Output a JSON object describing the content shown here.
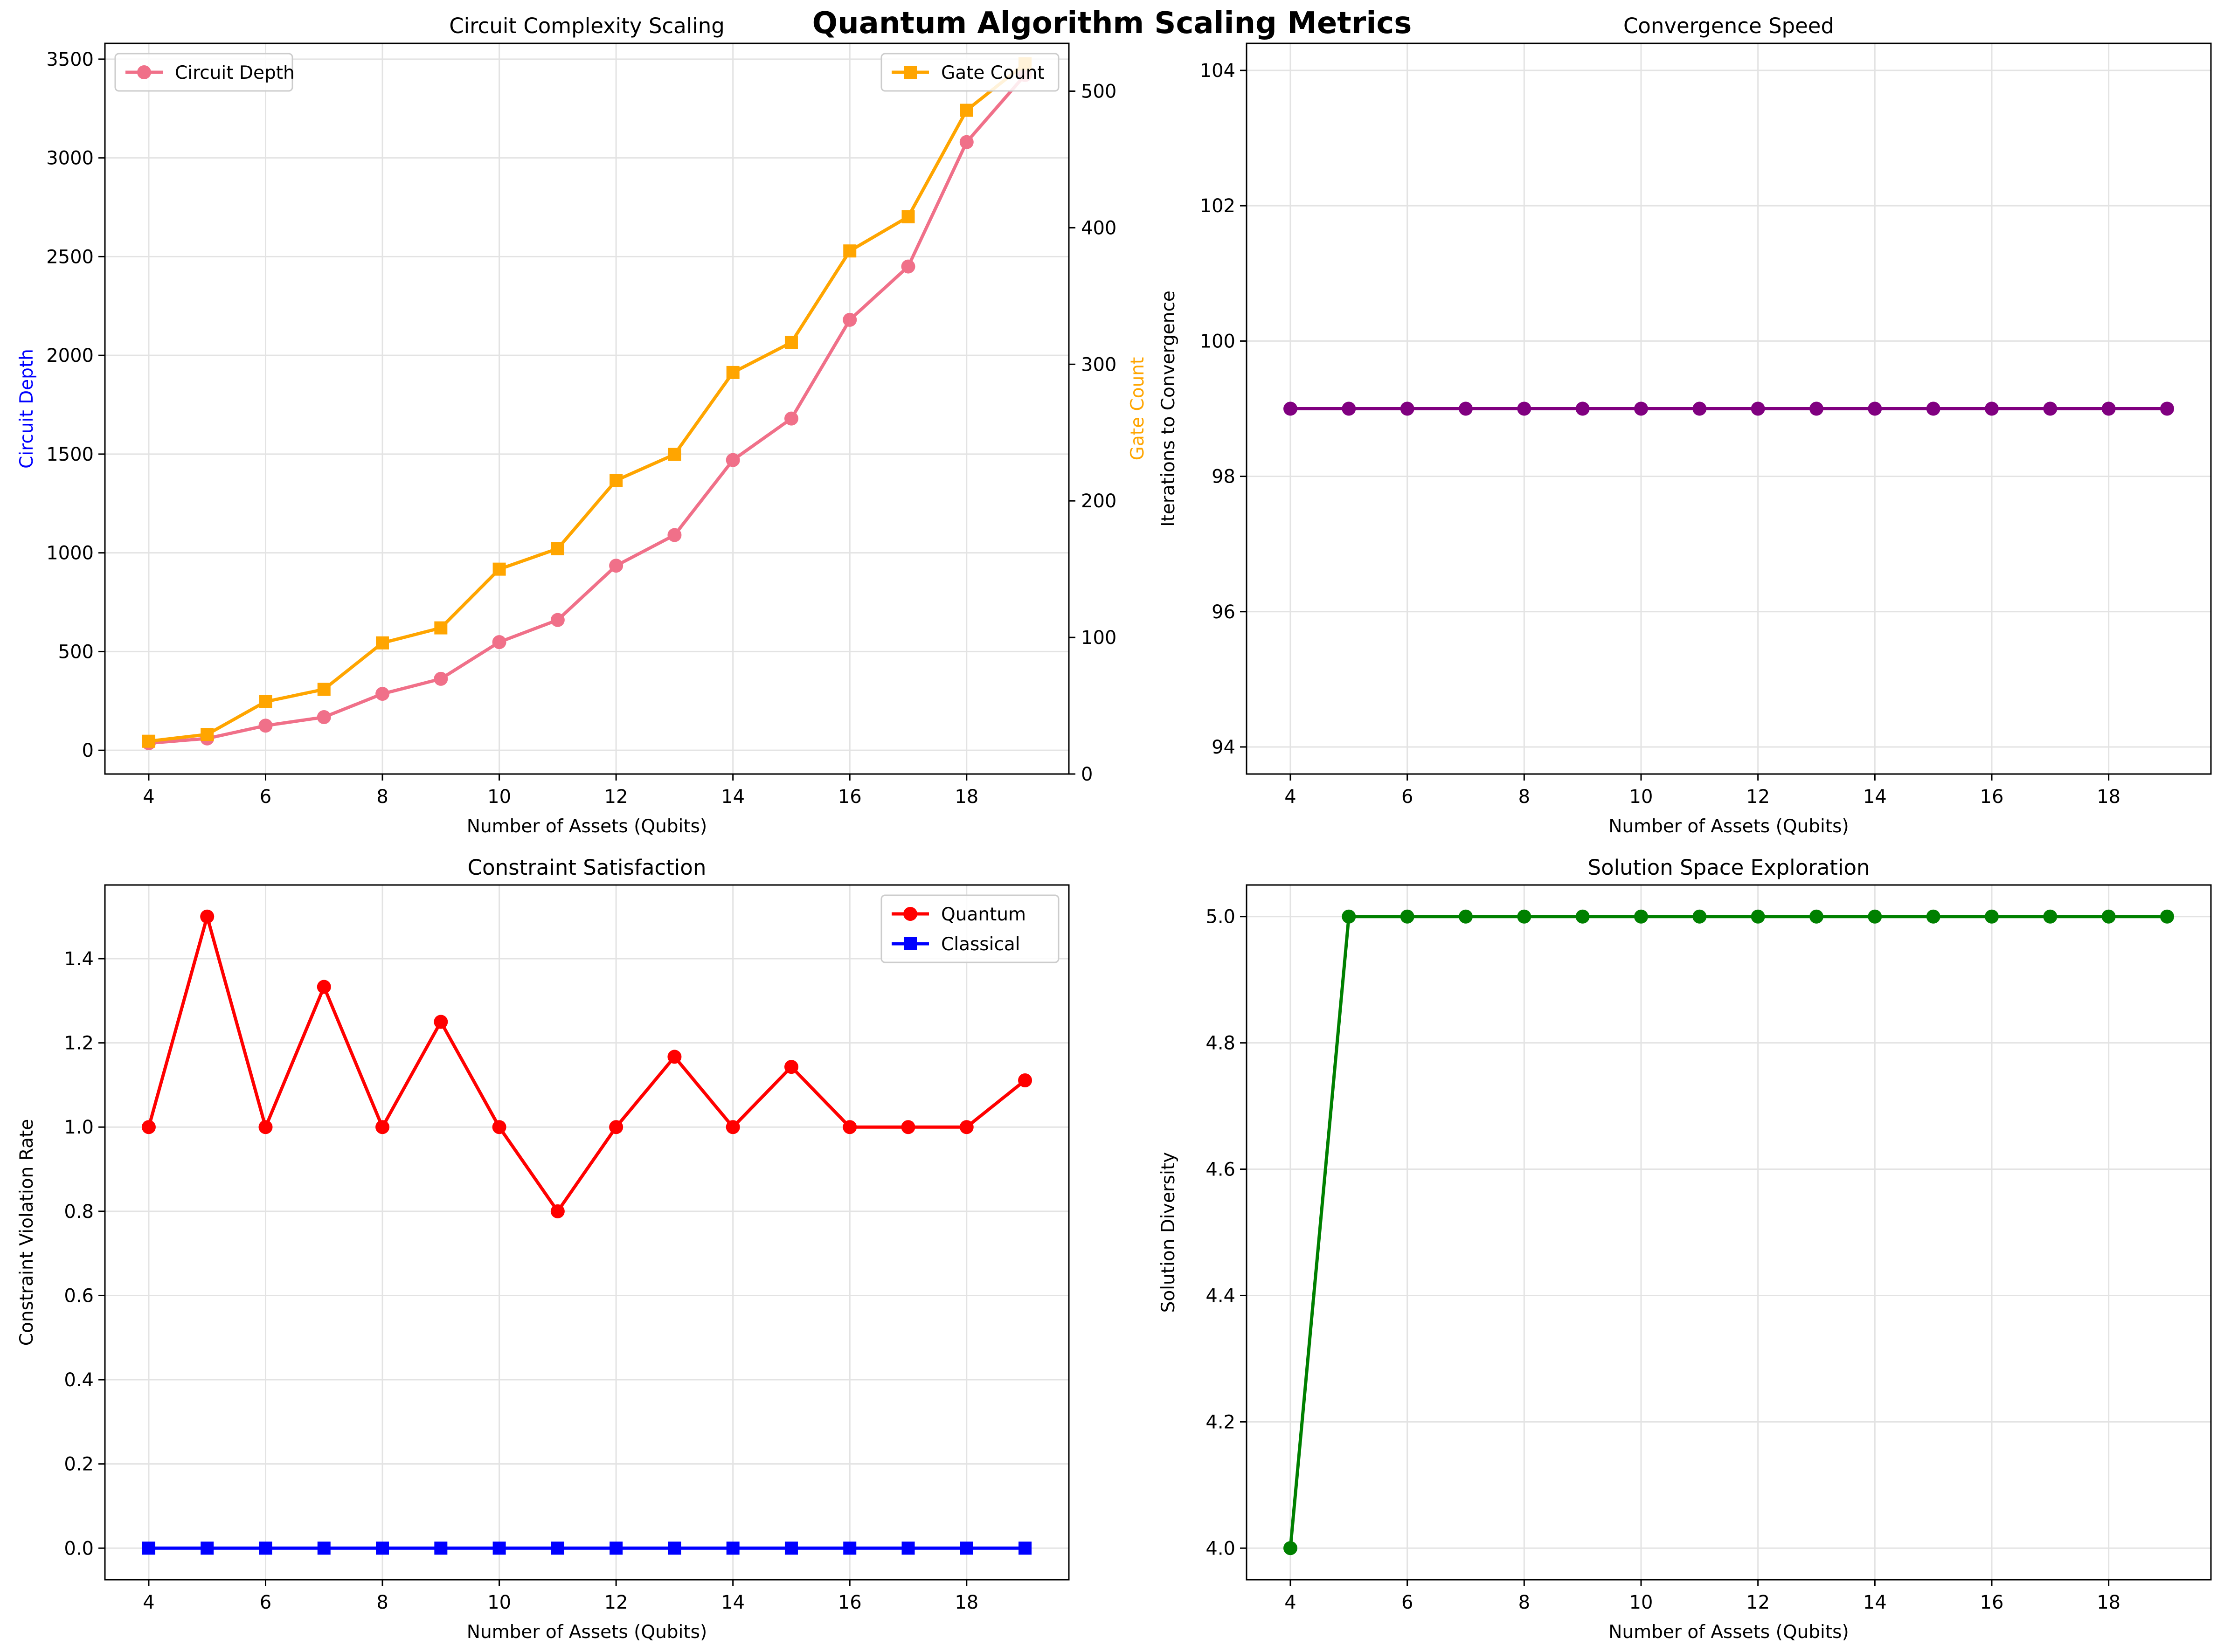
{
  "suptitle": "Quantum Algorithm Scaling Metrics",
  "chart_data": [
    {
      "type": "line",
      "title": "Circuit Complexity Scaling",
      "xlabel": "Number of Assets (Qubits)",
      "ylabel": "Circuit Depth",
      "ylabel_color": "#0000ff",
      "y2label": "Gate Count",
      "y2label_color": "#ffa500",
      "x": [
        4,
        5,
        6,
        7,
        8,
        9,
        10,
        11,
        12,
        13,
        14,
        15,
        16,
        17,
        18,
        19
      ],
      "xlim": [
        3.25,
        19.75
      ],
      "xticks": [
        4,
        6,
        8,
        10,
        12,
        14,
        16,
        18
      ],
      "ylim": [
        -120,
        3580
      ],
      "yticks": [
        0,
        500,
        1000,
        1500,
        2000,
        2500,
        3000,
        3500
      ],
      "y2lim": [
        0,
        535
      ],
      "y2ticks": [
        0,
        100,
        200,
        300,
        400,
        500
      ],
      "grid": true,
      "series": [
        {
          "name": "Circuit Depth",
          "axis": "left",
          "color": "#f07089",
          "marker": "circle",
          "legend": "top-left",
          "values": [
            36,
            60,
            125,
            168,
            286,
            362,
            548,
            660,
            935,
            1090,
            1470,
            1680,
            2180,
            2450,
            3080,
            3420
          ]
        },
        {
          "name": "Gate Count",
          "axis": "right",
          "color": "#ffa500",
          "marker": "square",
          "legend": "top-right",
          "values": [
            24,
            29,
            53,
            62,
            96,
            107,
            150,
            165,
            215,
            234,
            294,
            316,
            383,
            408,
            486,
            520
          ]
        }
      ]
    },
    {
      "type": "line",
      "title": "Convergence Speed",
      "xlabel": "Number of Assets (Qubits)",
      "ylabel": "Iterations to Convergence",
      "x": [
        4,
        5,
        6,
        7,
        8,
        9,
        10,
        11,
        12,
        13,
        14,
        15,
        16,
        17,
        18,
        19
      ],
      "xlim": [
        3.25,
        19.75
      ],
      "xticks": [
        4,
        6,
        8,
        10,
        12,
        14,
        16,
        18
      ],
      "ylim": [
        93.6,
        104.4
      ],
      "yticks": [
        94,
        96,
        98,
        100,
        102,
        104
      ],
      "grid": true,
      "series": [
        {
          "color": "#800080",
          "marker": "circle",
          "values": [
            99,
            99,
            99,
            99,
            99,
            99,
            99,
            99,
            99,
            99,
            99,
            99,
            99,
            99,
            99,
            99
          ]
        }
      ]
    },
    {
      "type": "line",
      "title": "Constraint Satisfaction",
      "xlabel": "Number of Assets (Qubits)",
      "ylabel": "Constraint Violation Rate",
      "x": [
        4,
        5,
        6,
        7,
        8,
        9,
        10,
        11,
        12,
        13,
        14,
        15,
        16,
        17,
        18,
        19
      ],
      "xlim": [
        3.25,
        19.75
      ],
      "xticks": [
        4,
        6,
        8,
        10,
        12,
        14,
        16,
        18
      ],
      "ylim": [
        -0.075,
        1.575
      ],
      "yticks": [
        0.0,
        0.2,
        0.4,
        0.6,
        0.8,
        1.0,
        1.2,
        1.4
      ],
      "ytick_decimals": 1,
      "grid": true,
      "legend": "top-right",
      "series": [
        {
          "name": "Quantum",
          "color": "#ff0000",
          "marker": "circle",
          "values": [
            1.0,
            1.5,
            1.0,
            1.333,
            1.0,
            1.25,
            1.0,
            0.8,
            1.0,
            1.167,
            1.0,
            1.143,
            1.0,
            1.0,
            1.0,
            1.111
          ]
        },
        {
          "name": "Classical",
          "color": "#0000ff",
          "marker": "square",
          "values": [
            0,
            0,
            0,
            0,
            0,
            0,
            0,
            0,
            0,
            0,
            0,
            0,
            0,
            0,
            0,
            0
          ]
        }
      ]
    },
    {
      "type": "line",
      "title": "Solution Space Exploration",
      "xlabel": "Number of Assets (Qubits)",
      "ylabel": "Solution Diversity",
      "x": [
        4,
        5,
        6,
        7,
        8,
        9,
        10,
        11,
        12,
        13,
        14,
        15,
        16,
        17,
        18,
        19
      ],
      "xlim": [
        3.25,
        19.75
      ],
      "xticks": [
        4,
        6,
        8,
        10,
        12,
        14,
        16,
        18
      ],
      "ylim": [
        3.95,
        5.05
      ],
      "yticks": [
        4.0,
        4.2,
        4.4,
        4.6,
        4.8,
        5.0
      ],
      "ytick_decimals": 1,
      "grid": true,
      "series": [
        {
          "color": "#008000",
          "marker": "circle",
          "values": [
            4,
            5,
            5,
            5,
            5,
            5,
            5,
            5,
            5,
            5,
            5,
            5,
            5,
            5,
            5,
            5
          ]
        }
      ]
    }
  ]
}
